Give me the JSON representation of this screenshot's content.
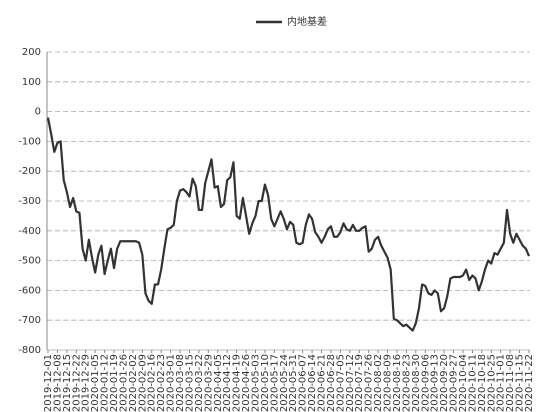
{
  "chart_data": {
    "type": "line",
    "categories": [
      "2019-12-01",
      null,
      null,
      "2019-12-08",
      null,
      null,
      "2019-12-15",
      null,
      null,
      "2019-12-22",
      null,
      null,
      "2019-12-29",
      null,
      null,
      "2020-01-05",
      null,
      null,
      "2020-01-12",
      null,
      null,
      "2020-01-19",
      null,
      null,
      "2020-01-26",
      null,
      null,
      "2020-02-02",
      null,
      null,
      "2020-02-09",
      null,
      null,
      "2020-02-16",
      null,
      null,
      "2020-02-23",
      null,
      null,
      "2020-03-01",
      null,
      null,
      "2020-03-08",
      null,
      null,
      "2020-03-15",
      null,
      null,
      "2020-03-22",
      null,
      null,
      "2020-03-29",
      null,
      null,
      "2020-04-05",
      null,
      null,
      "2020-04-12",
      null,
      null,
      "2020-04-19",
      null,
      null,
      "2020-04-26",
      null,
      null,
      "2020-05-03",
      null,
      null,
      "2020-05-10",
      null,
      null,
      "2020-05-17",
      null,
      null,
      "2020-05-24",
      null,
      null,
      "2020-05-31",
      null,
      null,
      "2020-06-07",
      null,
      null,
      "2020-06-14",
      null,
      null,
      "2020-06-21",
      null,
      null,
      "2020-06-28",
      null,
      null,
      "2020-07-05",
      null,
      null,
      "2020-07-12",
      null,
      null,
      "2020-07-19",
      null,
      null,
      "2020-07-26",
      null,
      null,
      "2020-08-02",
      null,
      null,
      "2020-08-09",
      null,
      null,
      "2020-08-16",
      null,
      null,
      "2020-08-23",
      null,
      null,
      "2020-08-30",
      null,
      null,
      "2020-09-06",
      null,
      null,
      "2020-09-13",
      null,
      null,
      "2020-09-20",
      null,
      null,
      "2020-09-27",
      null,
      null,
      "2020-10-04",
      null,
      null,
      "2020-10-11",
      null,
      null,
      "2020-10-18",
      null,
      null,
      "2020-10-25",
      null,
      null,
      "2020-11-01",
      null,
      null,
      "2020-11-08",
      null,
      null,
      "2020-11-15",
      null,
      null,
      "2020-11-22"
    ],
    "series": [
      {
        "name": "内地基差",
        "color": "#333333",
        "values": [
          -20,
          -75,
          -135,
          -105,
          -100,
          -230,
          -270,
          -320,
          -290,
          -335,
          -340,
          -460,
          -500,
          -430,
          -490,
          -540,
          -480,
          -450,
          -545,
          -500,
          -460,
          -525,
          -460,
          -435,
          -435,
          -435,
          -435,
          -435,
          -435,
          -440,
          -480,
          -610,
          -635,
          -645,
          -580,
          -580,
          -530,
          -460,
          -395,
          -390,
          -380,
          -300,
          -265,
          -260,
          -270,
          -285,
          -225,
          -250,
          -330,
          -330,
          -240,
          -200,
          -160,
          -255,
          -250,
          -320,
          -310,
          -230,
          -220,
          -170,
          -350,
          -360,
          -290,
          -350,
          -410,
          -375,
          -350,
          -300,
          -300,
          -245,
          -280,
          -360,
          -385,
          -360,
          -335,
          -360,
          -395,
          -370,
          -380,
          -440,
          -445,
          -440,
          -380,
          -345,
          -360,
          -405,
          -420,
          -440,
          -420,
          -395,
          -385,
          -420,
          -420,
          -405,
          -375,
          -395,
          -400,
          -380,
          -400,
          -400,
          -390,
          -385,
          -470,
          -460,
          -430,
          -420,
          -450,
          -470,
          -490,
          -530,
          -695,
          -700,
          -710,
          -720,
          -715,
          -725,
          -735,
          -710,
          -660,
          -580,
          -585,
          -610,
          -615,
          -600,
          -610,
          -670,
          -660,
          -620,
          -560,
          -555,
          -555,
          -555,
          -550,
          -530,
          -565,
          -550,
          -560,
          -600,
          -570,
          -530,
          -500,
          -510,
          -475,
          -480,
          -460,
          -440,
          -330,
          -410,
          -440,
          -410,
          -430,
          -450,
          -460,
          -485
        ]
      }
    ],
    "ylim": [
      -800,
      200
    ],
    "yticks": [
      -800,
      -700,
      -600,
      -500,
      -400,
      -300,
      -200,
      -100,
      0,
      100,
      200
    ],
    "grid": true,
    "legend": "top"
  }
}
